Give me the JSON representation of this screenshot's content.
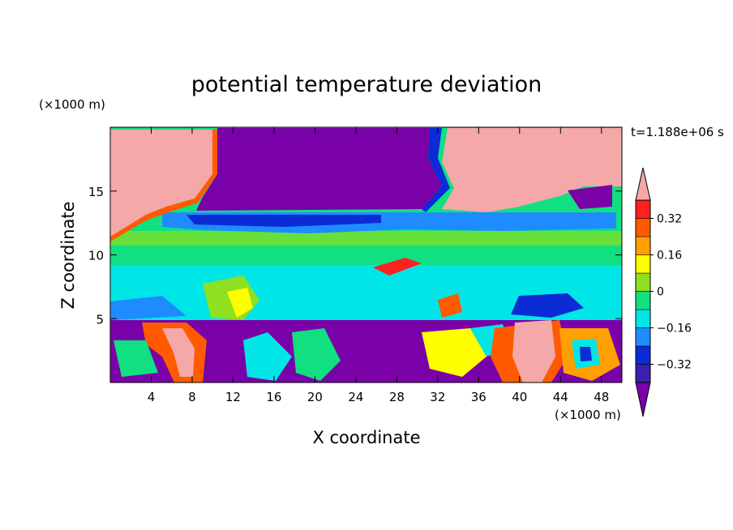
{
  "chart_data": {
    "type": "heatmap",
    "title": "potential temperature deviation",
    "xlabel": "X coordinate",
    "ylabel": "Z coordinate",
    "x_unit": "(×1000 m)",
    "y_unit": "(×1000 m)",
    "time_label": "t=1.188e+06 s",
    "xlim": [
      0,
      50
    ],
    "ylim": [
      0,
      20
    ],
    "x_ticks": [
      4,
      8,
      12,
      16,
      20,
      24,
      28,
      32,
      36,
      40,
      44,
      48
    ],
    "y_ticks": [
      5,
      10,
      15
    ],
    "colorbar": {
      "levels": [
        -0.4,
        -0.32,
        -0.24,
        -0.16,
        -0.08,
        0,
        0.08,
        0.16,
        0.24,
        0.32,
        0.4
      ],
      "labels": [
        "0.32",
        "0.16",
        "0",
        "−0.16",
        "−0.32"
      ],
      "label_values": [
        0.32,
        0.16,
        0,
        -0.16,
        -0.32
      ],
      "colors": [
        "#7a00a8",
        "#3b1fb0",
        "#0a2bd6",
        "#1e8cff",
        "#00e6e6",
        "#10e080",
        "#8ee020",
        "#ffff00",
        "#ffa000",
        "#ff5a00",
        "#ff2020",
        "#f5a8a8"
      ],
      "extend": "both"
    },
    "regions": [
      {
        "name": "upper-left warm",
        "value": 0.45
      },
      {
        "name": "upper-center cold",
        "value": -0.45
      },
      {
        "name": "upper-right warm",
        "value": 0.45
      },
      {
        "name": "stable layer 12-14",
        "value": -0.2
      },
      {
        "name": "mid troposphere",
        "value": 0.0
      },
      {
        "name": "boundary layer 0-5",
        "value": -0.4
      },
      {
        "name": "warm plume x36-44",
        "value": 0.45
      }
    ]
  }
}
